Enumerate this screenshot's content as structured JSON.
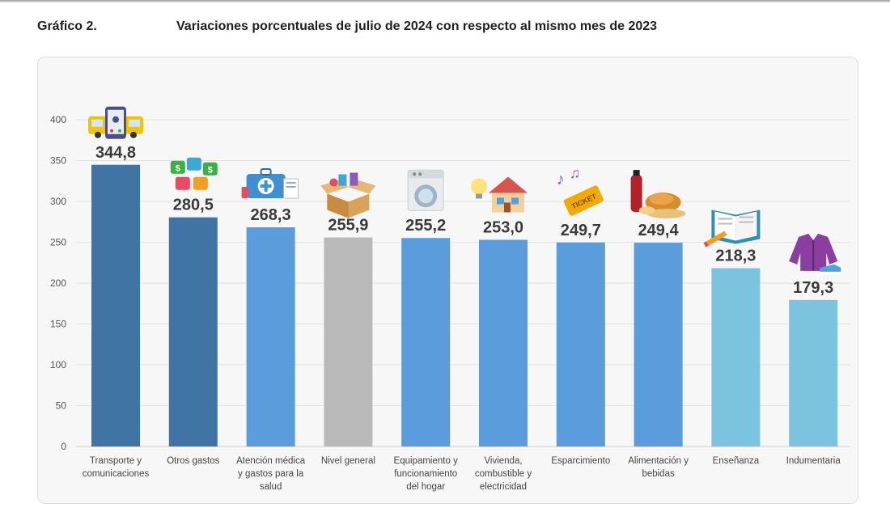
{
  "header": {
    "figure_label": "Gráfico 2.",
    "title": "Variaciones porcentuales de julio de 2024 con respecto al mismo mes de 2023"
  },
  "chart_data": {
    "type": "bar",
    "title": "Variaciones porcentuales de julio de 2024 con respecto al mismo mes de 2023",
    "xlabel": "",
    "ylabel": "",
    "ylim": [
      0,
      400
    ],
    "yticks": [
      0,
      50,
      100,
      150,
      200,
      250,
      300,
      350,
      400
    ],
    "grid": true,
    "legend": "none",
    "categories": [
      "Transporte y comunicaciones",
      "Otros gastos",
      "Atención médica y gastos para la salud",
      "Nivel general",
      "Equipamiento y funcionamiento del hogar",
      "Vivienda, combustible y electricidad",
      "Esparcimiento",
      "Alimentación y bebidas",
      "Enseñanza",
      "Indumentaria"
    ],
    "category_lines": [
      [
        "Transporte y",
        "comunicaciones"
      ],
      [
        "Otros gastos"
      ],
      [
        "Atención médica",
        "y gastos para la",
        "salud"
      ],
      [
        "Nivel general"
      ],
      [
        "Equipamiento y",
        "funcionamiento",
        "del hogar"
      ],
      [
        "Vivienda,",
        "combustible y",
        "electricidad"
      ],
      [
        "Esparcimiento"
      ],
      [
        "Alimentación y",
        "bebidas"
      ],
      [
        "Enseñanza"
      ],
      [
        "Indumentaria"
      ]
    ],
    "values": [
      344.8,
      280.5,
      268.3,
      255.9,
      255.2,
      253.0,
      249.7,
      249.4,
      218.3,
      179.3
    ],
    "value_labels": [
      "344,8",
      "280,5",
      "268,3",
      "255,9",
      "255,2",
      "253,0",
      "249,7",
      "249,4",
      "218,3",
      "179,3"
    ],
    "colors": [
      "#3f74a5",
      "#3f74a5",
      "#5a9cdc",
      "#b9b9b9",
      "#5a9cdc",
      "#5a9cdc",
      "#5a9cdc",
      "#5a9cdc",
      "#7cc3e0",
      "#7cc3e0"
    ],
    "icons": [
      "phone-bus-icon",
      "puzzle-money-icon",
      "medical-kit-icon",
      "open-box-icon",
      "washing-machine-icon",
      "house-lightbulb-icon",
      "ticket-music-icon",
      "food-drink-icon",
      "book-pencil-icon",
      "jacket-shoe-icon"
    ]
  }
}
